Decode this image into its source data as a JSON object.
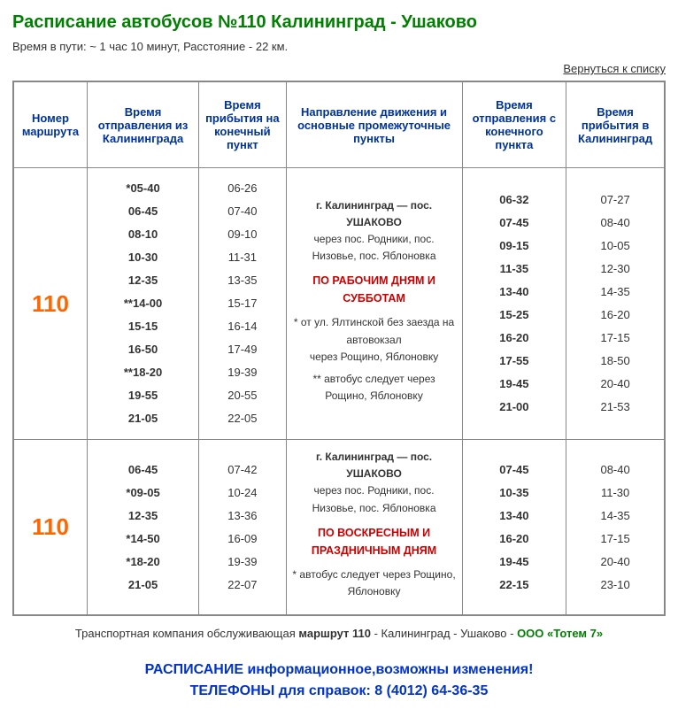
{
  "title": "Расписание автобусов №110 Калининград - Ушаково",
  "subtitle": "Время в пути: ~ 1 час 10 минут, Расстояние - 22 км.",
  "back_link": "Вернуться к списку",
  "headers": {
    "route": "Номер маршрута",
    "dep_from": "Время отправления из Калининграда",
    "arr_end": "Время прибытия на конечный пункт",
    "direction": "Направление движения и основные промежуточные пункты",
    "dep_end": "Время отправления с конечного пункта",
    "arr_kal": "Время прибытия в Калининград"
  },
  "row1": {
    "num": "110",
    "dep_from": "*05-40\n06-45\n08-10\n10-30\n12-35\n**14-00\n15-15\n16-50\n**18-20\n19-55\n21-05",
    "arr_end": "06-26\n07-40\n09-10\n11-31\n13-35\n15-17\n16-14\n17-49\n19-39\n20-55\n22-05",
    "dir_route_bold": "г. Калининград — пос. УШАКОВО",
    "dir_route_via": "через пос. Родники, пос. Низовье, пос. Яблоновка",
    "dir_days": "ПО РАБОЧИМ ДНЯМ И СУББОТАМ",
    "dir_note1": "* от ул. Ялтинской без заезда на автовокзал\nчерез Рощино, Яблоновку",
    "dir_note2": "** автобус следует через Рощино, Яблоновку",
    "dep_end": "06-32\n07-45\n09-15\n11-35\n13-40\n15-25\n16-20\n17-55\n19-45\n21-00",
    "arr_kal": "07-27\n08-40\n10-05\n12-30\n14-35\n16-20\n17-15\n18-50\n20-40\n21-53"
  },
  "row2": {
    "num": "110",
    "dep_from": "06-45\n*09-05\n12-35\n*14-50\n*18-20\n21-05",
    "arr_end": "07-42\n10-24\n13-36\n16-09\n19-39\n22-07",
    "dir_route_bold": "г. Калининград — пос. УШАКОВО",
    "dir_route_via": "через пос. Родники, пос. Низовье, пос. Яблоновка",
    "dir_days": "ПО ВОСКРЕСНЫМ И ПРАЗДНИЧНЫМ ДНЯМ",
    "dir_note1": "* автобус следует через Рощино, Яблоновку",
    "dep_end": "07-45\n10-35\n13-40\n16-20\n19-45\n22-15",
    "arr_kal": "08-40\n11-30\n14-35\n17-15\n20-40\n23-10"
  },
  "footer_company_pre": "Транспортная компания обслуживающая ",
  "footer_company_bold": "маршрут 110",
  "footer_company_mid": " - Калининград - Ушаково - ",
  "footer_company_name": "ООО «Тотем 7»",
  "footer_info1": "РАСПИСАНИЕ информационное,возможны изменения!",
  "footer_info2": "ТЕЛЕФОНЫ для справок: 8 (4012) 64-36-35"
}
